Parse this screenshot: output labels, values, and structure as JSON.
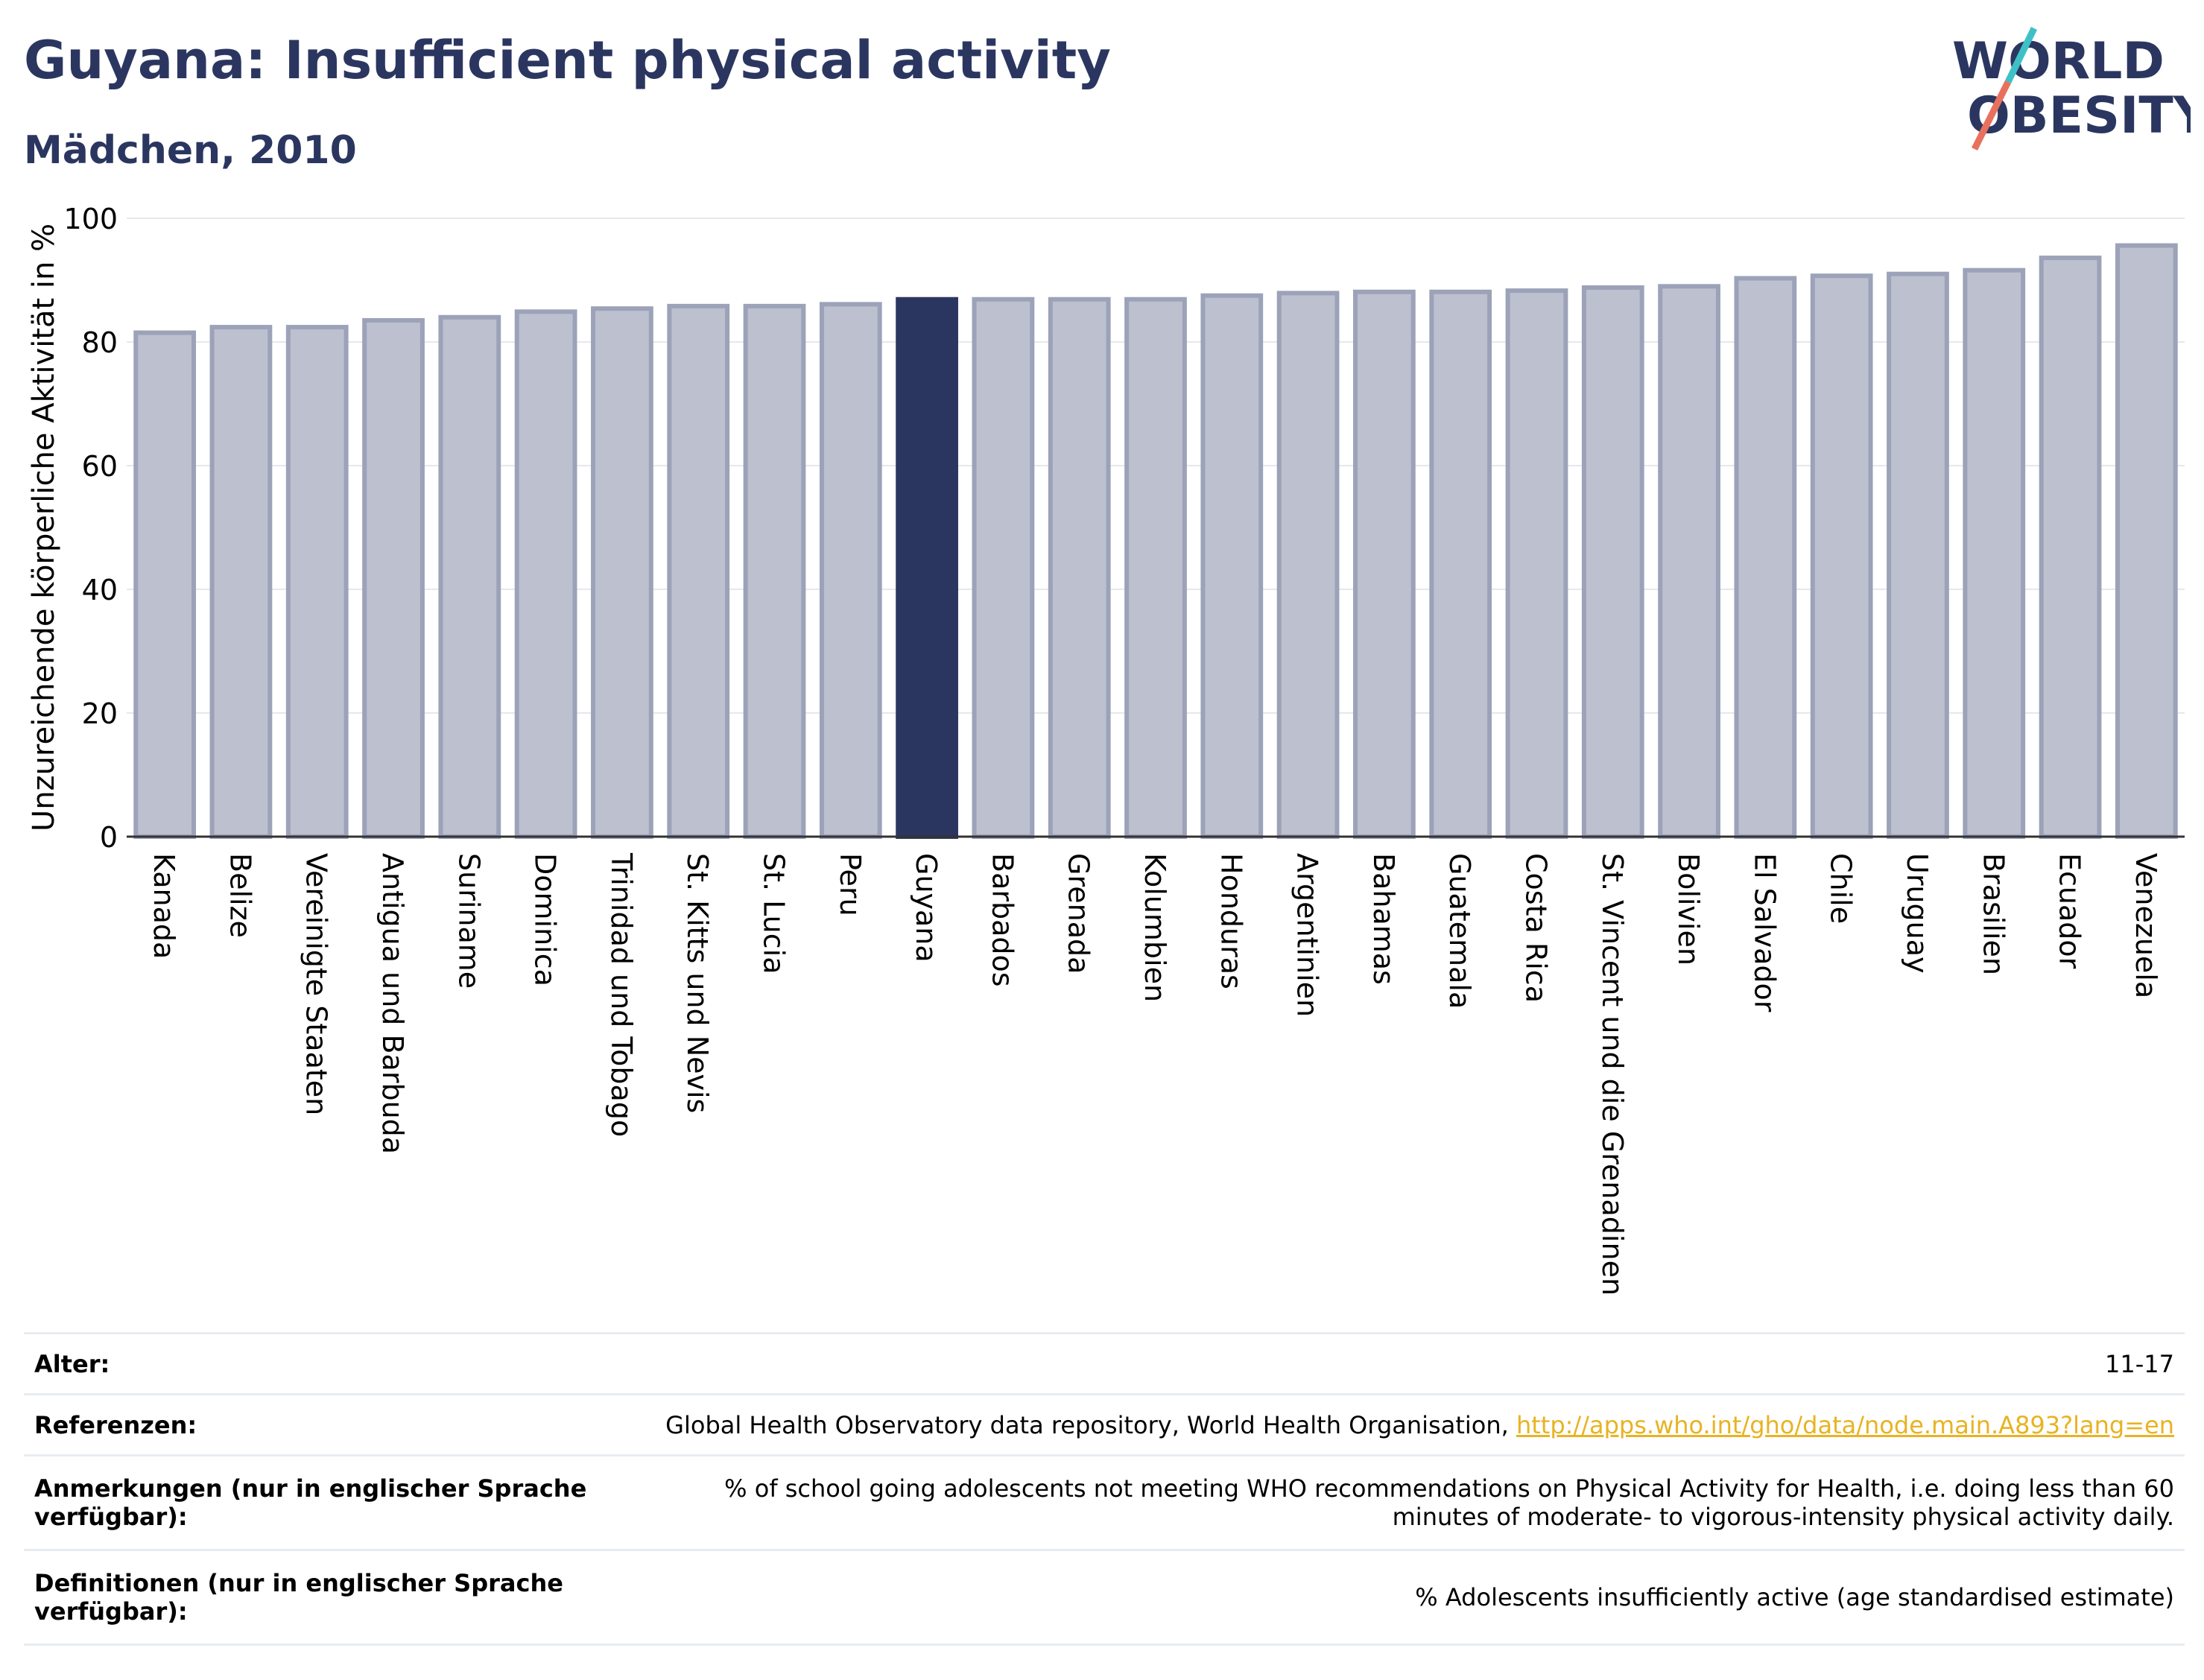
{
  "chart_data": {
    "type": "bar",
    "title": "Guyana: Insufficient physical activity",
    "subtitle": "Mädchen, 2010",
    "ylabel": "Unzureichende körperliche Aktivität in %",
    "xlabel": "",
    "ylim": [
      0,
      100
    ],
    "yticks": [
      0,
      20,
      40,
      60,
      80,
      100
    ],
    "grid": true,
    "highlight": "Guyana",
    "colors": {
      "bar": "#bcc0cf",
      "bar_border": "#9ca2b8",
      "highlight": "#2b3660",
      "title": "#2b3660",
      "link": "#e8b322"
    },
    "categories": [
      "Kanada",
      "Belize",
      "Vereinigte Staaten",
      "Antigua und Barbuda",
      "Suriname",
      "Dominica",
      "Trinidad und Tobago",
      "St. Kitts und Nevis",
      "St. Lucia",
      "Peru",
      "Guyana",
      "Barbados",
      "Grenada",
      "Kolumbien",
      "Honduras",
      "Argentinien",
      "Bahamas",
      "Guatemala",
      "Costa Rica",
      "St. Vincent und die Grenadinen",
      "Bolivien",
      "El Salvador",
      "Chile",
      "Uruguay",
      "Brasilien",
      "Ecuador",
      "Venezuela"
    ],
    "values": [
      81.5,
      82.4,
      82.4,
      83.5,
      84.0,
      84.9,
      85.4,
      85.8,
      85.8,
      86.1,
      86.9,
      86.9,
      86.9,
      86.9,
      87.5,
      87.9,
      88.1,
      88.1,
      88.3,
      88.8,
      89.0,
      90.3,
      90.7,
      91.0,
      91.6,
      93.6,
      95.6
    ]
  },
  "logo": {
    "line1": "WORLD",
    "line2": "OBESITY",
    "slash_colors": [
      "#3ec1c6",
      "#e8715d"
    ]
  },
  "info": {
    "age_label": "Alter:",
    "age_value": "11-17",
    "ref_label": "Referenzen:",
    "ref_text": "Global Health Observatory data repository, World Health Organisation, ",
    "ref_link": "http://apps.who.int/gho/data/node.main.A893?lang=en",
    "notes_label": "Anmerkungen (nur in englischer Sprache verfügbar):",
    "notes_text": "% of school going adolescents not meeting WHO recommendations on Physical Activity for Health, i.e. doing less than 60 minutes of moderate- to vigorous-intensity physical activity daily.",
    "def_label": "Definitionen (nur in englischer Sprache verfügbar):",
    "def_text": "% Adolescents insufficiently active (age standardised estimate)"
  }
}
